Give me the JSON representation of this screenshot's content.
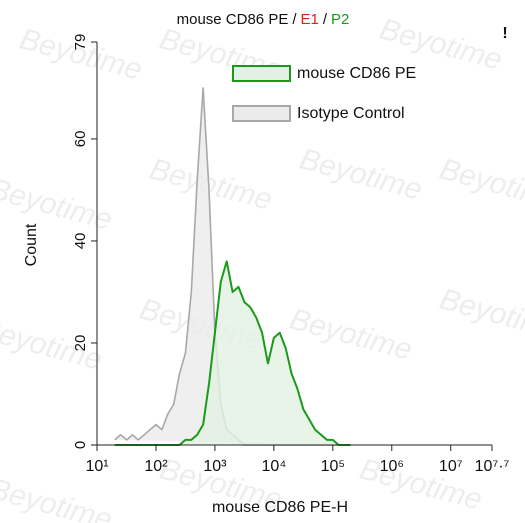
{
  "chart_data": {
    "type": "histogram",
    "title": {
      "parts": [
        "mouse CD86 PE",
        "/",
        "E1",
        "/",
        "P2"
      ],
      "colors": [
        "#111111",
        "#111111",
        "#e02020",
        "#111111",
        "#1a9a1a"
      ]
    },
    "corner_mark": "!",
    "watermark": "Beyotime",
    "x_label": "mouse CD86 PE-H",
    "y_label": "Count",
    "xscale": "log",
    "xlim": [
      10,
      50118723
    ],
    "xticks": [
      {
        "value": 10,
        "label": "10¹"
      },
      {
        "value": 100,
        "label": "10²"
      },
      {
        "value": 1000,
        "label": "10³"
      },
      {
        "value": 10000,
        "label": "10⁴"
      },
      {
        "value": 100000,
        "label": "10⁵"
      },
      {
        "value": 1000000,
        "label": "10⁶"
      },
      {
        "value": 10000000,
        "label": "10⁷"
      },
      {
        "value": 50118723,
        "label": "10⁷·⁷"
      }
    ],
    "ylim": [
      0,
      79
    ],
    "yticks": [
      0,
      20,
      40,
      60,
      79
    ],
    "legend": "upper right",
    "x": [
      20,
      25,
      32,
      40,
      50,
      63,
      79,
      100,
      126,
      158,
      200,
      251,
      316,
      398,
      501,
      631,
      794,
      1000,
      1259,
      1585,
      1995,
      2512,
      3162,
      3981,
      5012,
      6310,
      7943,
      10000,
      12589,
      15849,
      19953,
      25119,
      31623,
      39811,
      50119,
      63096,
      79433,
      100000,
      125893,
      158489,
      199526
    ],
    "series": [
      {
        "name": "mouse CD86 PE",
        "color": "#1a9a1a",
        "fill": "#e2f1e2",
        "values": [
          0,
          0,
          0,
          0,
          0,
          0,
          0,
          0,
          0,
          0,
          0,
          0,
          1,
          1,
          2,
          4,
          12,
          22,
          32,
          36,
          30,
          31,
          28,
          27,
          25,
          22,
          16,
          21,
          22,
          19,
          14,
          11,
          7,
          5,
          3,
          2,
          1,
          1,
          0,
          0,
          0
        ]
      },
      {
        "name": "Isotype Control",
        "color": "#a8a8a8",
        "fill": "#ebebeb",
        "values": [
          1,
          2,
          1,
          2,
          1,
          2,
          3,
          4,
          3,
          6,
          8,
          14,
          18,
          30,
          52,
          70,
          50,
          22,
          8,
          3,
          2,
          1,
          0,
          0,
          0,
          0,
          0,
          0,
          0,
          0,
          0,
          0,
          0,
          0,
          0,
          0,
          0,
          0,
          0,
          0,
          0
        ]
      }
    ]
  }
}
